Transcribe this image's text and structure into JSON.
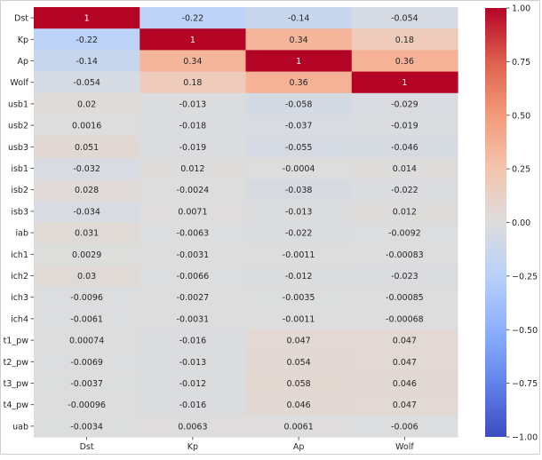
{
  "chart_data": {
    "type": "heatmap",
    "title": "",
    "xlabel": "",
    "ylabel": "",
    "columns": [
      "Dst",
      "Kp",
      "Ap",
      "Wolf"
    ],
    "rows": [
      "Dst",
      "Kp",
      "Ap",
      "Wolf",
      "usb1",
      "usb2",
      "usb3",
      "isb1",
      "isb2",
      "isb3",
      "iab",
      "ich1",
      "ich2",
      "ich3",
      "ich4",
      "t1_pw",
      "t2_pw",
      "t3_pw",
      "t4_pw",
      "uab"
    ],
    "values": [
      [
        "1",
        "-0.22",
        "-0.14",
        "-0.054"
      ],
      [
        "-0.22",
        "1",
        "0.34",
        "0.18"
      ],
      [
        "-0.14",
        "0.34",
        "1",
        "0.36"
      ],
      [
        "-0.054",
        "0.18",
        "0.36",
        "1"
      ],
      [
        "0.02",
        "-0.013",
        "-0.058",
        "-0.029"
      ],
      [
        "0.0016",
        "-0.018",
        "-0.037",
        "-0.019"
      ],
      [
        "0.051",
        "-0.019",
        "-0.055",
        "-0.046"
      ],
      [
        "-0.032",
        "0.012",
        "-0.0004",
        "0.014"
      ],
      [
        "0.028",
        "-0.0024",
        "-0.038",
        "-0.022"
      ],
      [
        "-0.034",
        "0.0071",
        "-0.013",
        "0.012"
      ],
      [
        "0.031",
        "-0.0063",
        "-0.022",
        "-0.0092"
      ],
      [
        "0.0029",
        "-0.0031",
        "-0.0011",
        "-0.00083"
      ],
      [
        "0.03",
        "-0.0066",
        "-0.012",
        "-0.023"
      ],
      [
        "-0.0096",
        "-0.0027",
        "-0.0035",
        "-0.00085"
      ],
      [
        "-0.0061",
        "-0.0031",
        "-0.0011",
        "-0.00068"
      ],
      [
        "0.00074",
        "-0.016",
        "0.047",
        "0.047"
      ],
      [
        "-0.0069",
        "-0.013",
        "0.054",
        "0.047"
      ],
      [
        "-0.0037",
        "-0.012",
        "0.058",
        "0.046"
      ],
      [
        "-0.00096",
        "-0.016",
        "0.046",
        "0.047"
      ],
      [
        "-0.0034",
        "0.0063",
        "0.0061",
        "-0.006"
      ]
    ],
    "colorbar": {
      "colormap": "coolwarm",
      "range": [
        -1.0,
        1.0
      ],
      "ticks": [
        "1.00",
        "0.75",
        "0.50",
        "0.25",
        "0.00",
        "−0.25",
        "−0.50",
        "−0.75",
        "−1.00"
      ],
      "tick_values": [
        1.0,
        0.75,
        0.5,
        0.25,
        0.0,
        -0.25,
        -0.5,
        -0.75,
        -1.0
      ]
    },
    "annotations_shown": true,
    "grid": false
  }
}
